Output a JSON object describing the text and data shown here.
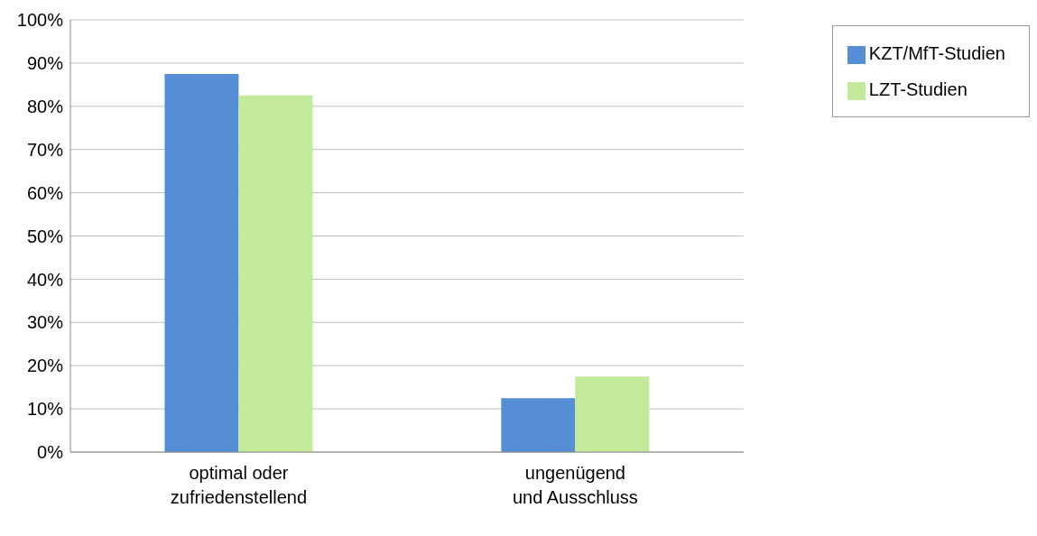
{
  "chart_data": {
    "type": "bar",
    "categories": [
      "optimal oder\nzufriedenstellend",
      "ungenügend\nund Ausschluss"
    ],
    "series": [
      {
        "name": "KZT/MfT-Studien",
        "color": "#558ed5",
        "values": [
          87.5,
          12.5
        ]
      },
      {
        "name": "LZT-Studien",
        "color": "#c3e99b",
        "values": [
          82.5,
          17.5
        ]
      }
    ],
    "ylim": [
      0,
      100
    ],
    "yticks": [
      {
        "value": 0,
        "label": "0%"
      },
      {
        "value": 10,
        "label": "10%"
      },
      {
        "value": 20,
        "label": "20%"
      },
      {
        "value": 30,
        "label": "30%"
      },
      {
        "value": 40,
        "label": "40%"
      },
      {
        "value": 50,
        "label": "50%"
      },
      {
        "value": 60,
        "label": "60%"
      },
      {
        "value": 70,
        "label": "70%"
      },
      {
        "value": 80,
        "label": "80%"
      },
      {
        "value": 90,
        "label": "90%"
      },
      {
        "value": 100,
        "label": "100%"
      }
    ],
    "grid": "y",
    "legend": "top right"
  }
}
